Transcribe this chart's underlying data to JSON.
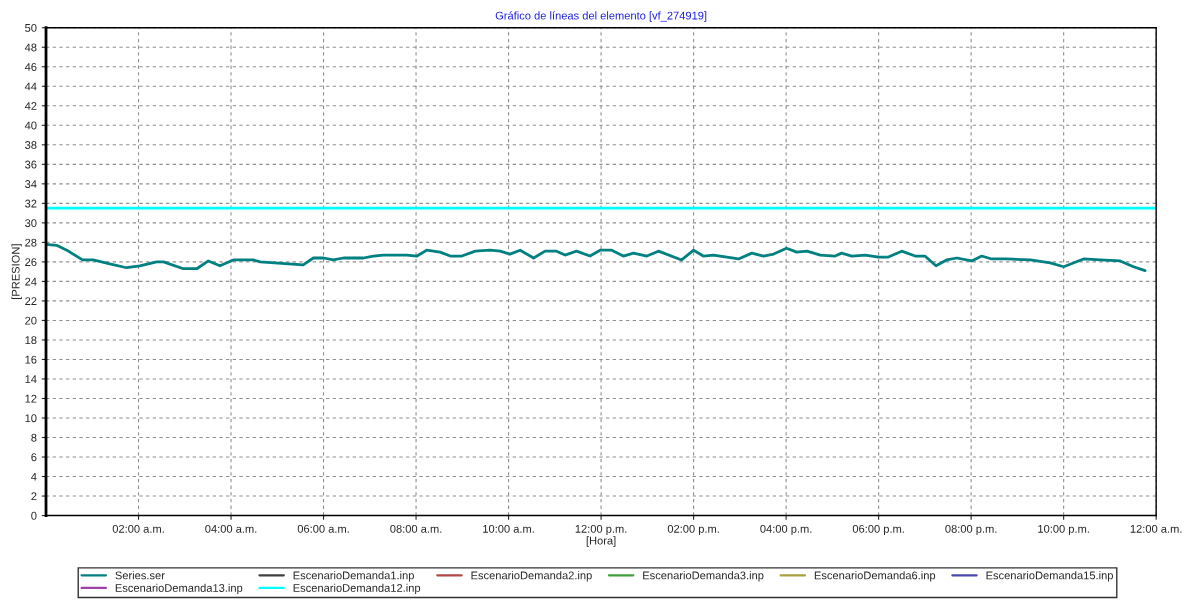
{
  "chart_data": {
    "type": "line",
    "title": "Gráfico de líneas del elemento [vf_274919]",
    "xlabel": "[Hora]",
    "ylabel": "[PRESION]",
    "xlim": [
      0,
      24
    ],
    "xticks": [
      {
        "value": 2,
        "label": "02:00 a.m."
      },
      {
        "value": 4,
        "label": "04:00 a.m."
      },
      {
        "value": 6,
        "label": "06:00 a.m."
      },
      {
        "value": 8,
        "label": "08:00 a.m."
      },
      {
        "value": 10,
        "label": "10:00 a.m."
      },
      {
        "value": 12,
        "label": "12:00 p.m."
      },
      {
        "value": 14,
        "label": "02:00 p.m."
      },
      {
        "value": 16,
        "label": "04:00 p.m."
      },
      {
        "value": 18,
        "label": "06:00 p.m."
      },
      {
        "value": 20,
        "label": "08:00 p.m."
      },
      {
        "value": 22,
        "label": "10:00 p.m."
      },
      {
        "value": 24,
        "label": "12:00 a.m."
      }
    ],
    "ylim": [
      0,
      50
    ],
    "yticks": [
      0,
      2,
      4,
      6,
      8,
      10,
      12,
      14,
      16,
      18,
      20,
      22,
      24,
      26,
      28,
      30,
      32,
      34,
      36,
      38,
      40,
      42,
      44,
      46,
      48,
      50
    ],
    "grid": true,
    "legend": "bottom",
    "line_style": "solid",
    "marker": "none",
    "series": [
      {
        "name": "Series.ser",
        "color": "#008080",
        "x": [
          0.0,
          0.23,
          0.45,
          0.79,
          1.02,
          1.38,
          1.74,
          2.03,
          2.39,
          2.54,
          2.97,
          3.26,
          3.51,
          3.76,
          4.05,
          4.48,
          4.63,
          5.56,
          5.78,
          6.0,
          6.21,
          6.43,
          6.86,
          7.08,
          7.29,
          7.8,
          8.02,
          8.23,
          8.52,
          8.74,
          8.99,
          9.28,
          9.6,
          9.82,
          10.03,
          10.25,
          10.54,
          10.79,
          11.04,
          11.22,
          11.47,
          11.76,
          11.98,
          12.23,
          12.48,
          12.7,
          12.99,
          13.24,
          13.74,
          14.0,
          14.21,
          14.43,
          14.97,
          15.26,
          15.51,
          15.73,
          16.01,
          16.23,
          16.45,
          16.74,
          17.06,
          17.2,
          17.42,
          17.71,
          18.0,
          18.21,
          18.5,
          18.79,
          19.0,
          19.24,
          19.47,
          19.69,
          20.01,
          20.23,
          20.44,
          20.77,
          21.28,
          21.71,
          22.0,
          22.43,
          22.79,
          23.22,
          23.51,
          23.76
        ],
        "values": [
          27.8,
          27.7,
          27.2,
          26.2,
          26.2,
          25.8,
          25.4,
          25.6,
          26.0,
          26.0,
          25.3,
          25.3,
          26.1,
          25.6,
          26.2,
          26.2,
          26.0,
          25.7,
          26.4,
          26.4,
          26.2,
          26.4,
          26.4,
          26.6,
          26.7,
          26.7,
          26.6,
          27.2,
          27.0,
          26.6,
          26.6,
          27.1,
          27.2,
          27.1,
          26.8,
          27.2,
          26.4,
          27.1,
          27.1,
          26.7,
          27.1,
          26.6,
          27.2,
          27.2,
          26.6,
          26.9,
          26.6,
          27.1,
          26.2,
          27.2,
          26.6,
          26.7,
          26.3,
          26.9,
          26.6,
          26.8,
          27.4,
          27.0,
          27.1,
          26.7,
          26.6,
          26.9,
          26.6,
          26.7,
          26.5,
          26.5,
          27.1,
          26.6,
          26.6,
          25.6,
          26.2,
          26.4,
          26.1,
          26.6,
          26.3,
          26.3,
          26.2,
          25.9,
          25.5,
          26.3,
          26.2,
          26.1,
          25.5,
          25.1
        ]
      },
      {
        "name": "EscenarioDemanda1.inp",
        "color": "#404040"
      },
      {
        "name": "EscenarioDemanda2.inp",
        "color": "#b04848"
      },
      {
        "name": "EscenarioDemanda3.inp",
        "color": "#40a040"
      },
      {
        "name": "EscenarioDemanda6.inp",
        "color": "#a8a040"
      },
      {
        "name": "EscenarioDemanda15.inp",
        "color": "#4848b0"
      },
      {
        "name": "EscenarioDemanda13.inp",
        "color": "#a040a8"
      },
      {
        "name": "EscenarioDemanda12.inp",
        "color": "#00ffff",
        "x": [
          0,
          24
        ],
        "values": [
          31.5,
          31.5
        ]
      }
    ]
  }
}
